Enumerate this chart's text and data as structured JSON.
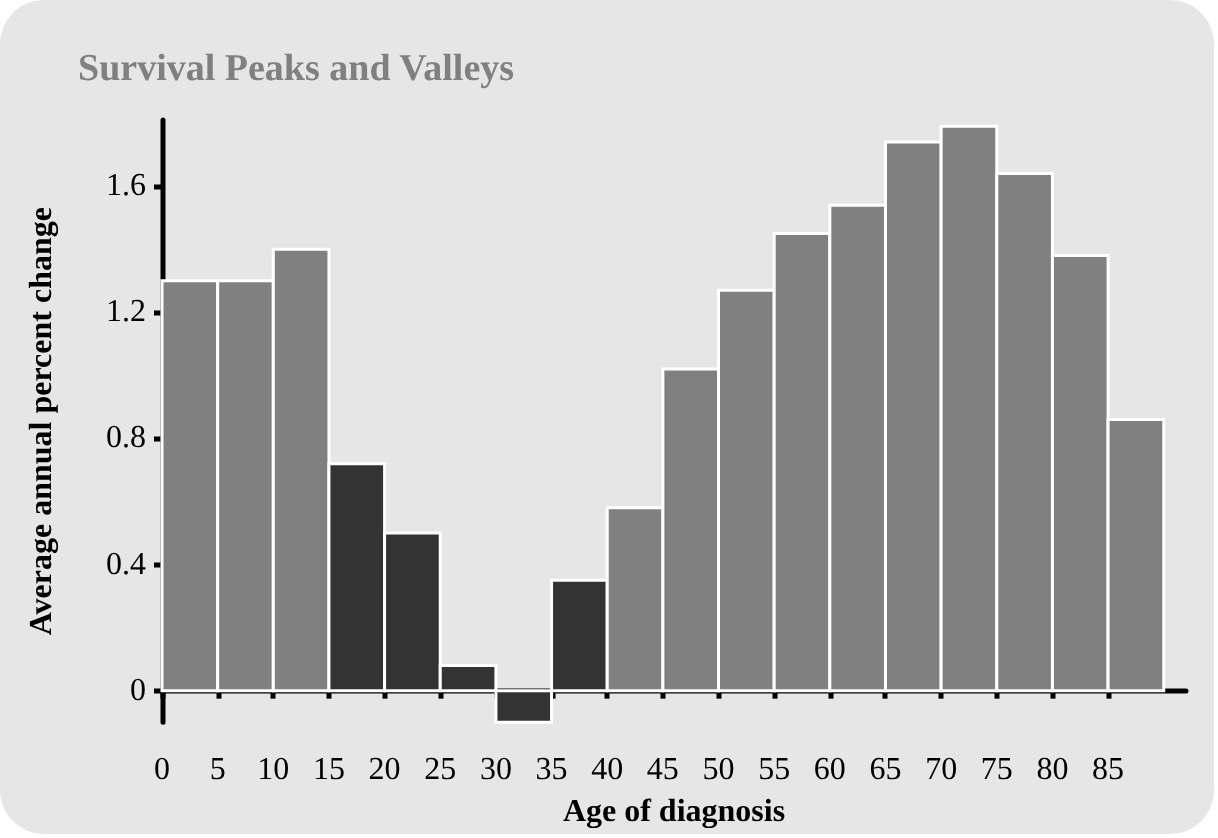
{
  "chart_data": {
    "type": "histogram",
    "title": "Survival Peaks and Valleys",
    "xlabel": "Age of diagnosis",
    "ylabel": "Average annual percent change",
    "bins": [
      0,
      5,
      10,
      15,
      20,
      25,
      30,
      35,
      40,
      45,
      50,
      55,
      60,
      65,
      70,
      75,
      80,
      85,
      90
    ],
    "values": [
      1.3,
      1.3,
      1.4,
      0.72,
      0.5,
      0.08,
      -0.1,
      0.35,
      0.58,
      1.02,
      1.27,
      1.45,
      1.54,
      1.74,
      1.79,
      1.64,
      1.38,
      0.86
    ],
    "colors": [
      "#808080",
      "#808080",
      "#808080",
      "#333333",
      "#333333",
      "#333333",
      "#333333",
      "#333333",
      "#808080",
      "#808080",
      "#808080",
      "#808080",
      "#808080",
      "#808080",
      "#808080",
      "#808080",
      "#808080",
      "#808080"
    ],
    "xlim": [
      0,
      92
    ],
    "xticks": [
      0,
      5,
      10,
      15,
      20,
      25,
      30,
      35,
      40,
      45,
      50,
      55,
      60,
      65,
      70,
      75,
      80,
      85
    ],
    "ylim": [
      -0.1,
      1.81
    ],
    "yticks": [
      0,
      0.4,
      0.8,
      1.2,
      1.6
    ]
  }
}
